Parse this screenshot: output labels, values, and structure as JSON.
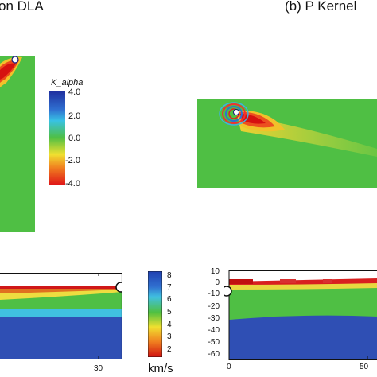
{
  "panel_a": {
    "title": "on DLA"
  },
  "panel_b": {
    "title": "(b) P Kernel"
  },
  "kernel_colorbar": {
    "title": "K_alpha",
    "labels": [
      "4.0",
      "2.0",
      "0.0",
      "-2.0",
      "-4.0"
    ],
    "colors": [
      "#2030a0",
      "#30c0e0",
      "#50c040",
      "#f0e030",
      "#e02020"
    ]
  },
  "velocity_colorbar": {
    "labels": [
      "8",
      "7",
      "6",
      "5",
      "4",
      "3",
      "2"
    ],
    "unit": "km/s",
    "colors": [
      "#2040b0",
      "#40c0e0",
      "#50c040",
      "#f0e030",
      "#f08020",
      "#d01010"
    ]
  },
  "model_left": {
    "x_tick": "30"
  },
  "model_right": {
    "y_ticks": [
      "10",
      "0",
      "-10",
      "-20",
      "-30",
      "-40",
      "-50",
      "-60"
    ],
    "x_ticks": [
      "0",
      "50"
    ]
  }
}
